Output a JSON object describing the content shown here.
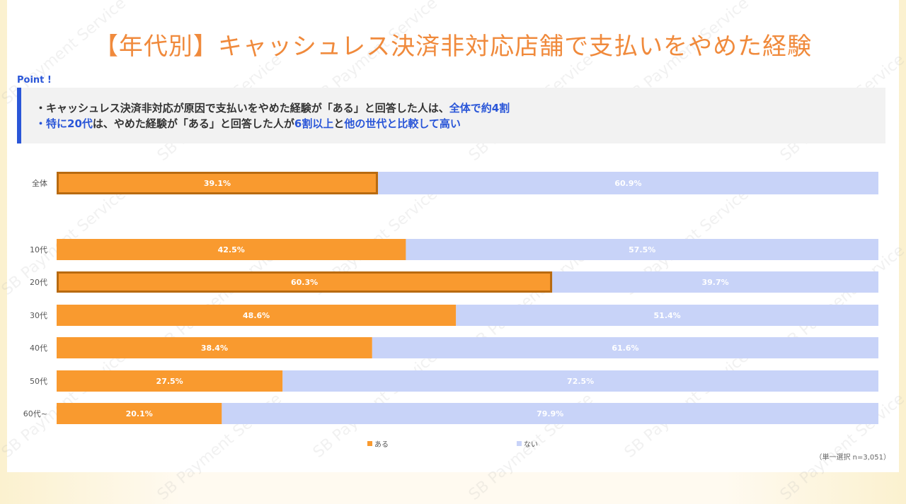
{
  "title": "【年代別】キャッシュレス決済非対応店舗で支払いをやめた経験",
  "point": {
    "label": "Point !",
    "line1": {
      "text": "・キャッシュレス決済非対応が原因で支払いをやめた経験が「ある」と回答した人は、",
      "highlight": "全体で約4割"
    },
    "line2": {
      "bullet": "・",
      "h1": "特に20代",
      "t1": "は、やめた経験が「ある」と回答した人が",
      "h2": "6割以上",
      "t2": "と",
      "h3": "他の世代と比較して高い"
    }
  },
  "watermark": "SB Payment Service",
  "note": "（単一選択 n=3,051）",
  "colors": {
    "aru": "#f99a2f",
    "nai": "#c8d3f8",
    "highlight_border": "#b86a10",
    "accent": "#2a56d8",
    "title": "#f08a3c"
  },
  "chart_data": {
    "type": "bar",
    "orientation": "horizontal",
    "stacked": true,
    "percent": true,
    "categories": [
      "全体",
      "10代",
      "20代",
      "30代",
      "40代",
      "50代",
      "60代~"
    ],
    "highlighted": [
      "全体",
      "20代"
    ],
    "series": [
      {
        "name": "ある",
        "values": [
          39.1,
          42.5,
          60.3,
          48.6,
          38.4,
          27.5,
          20.1
        ],
        "labels": [
          "39.1%",
          "42.5%",
          "60.3%",
          "48.6%",
          "38.4%",
          "27.5%",
          "20.1%"
        ]
      },
      {
        "name": "ない",
        "values": [
          60.9,
          57.5,
          39.7,
          51.4,
          61.6,
          72.5,
          79.9
        ],
        "labels": [
          "60.9%",
          "57.5%",
          "39.7%",
          "51.4%",
          "61.6%",
          "72.5%",
          "79.9%"
        ]
      }
    ],
    "xlim": [
      0,
      100
    ],
    "legend": "bottom"
  }
}
